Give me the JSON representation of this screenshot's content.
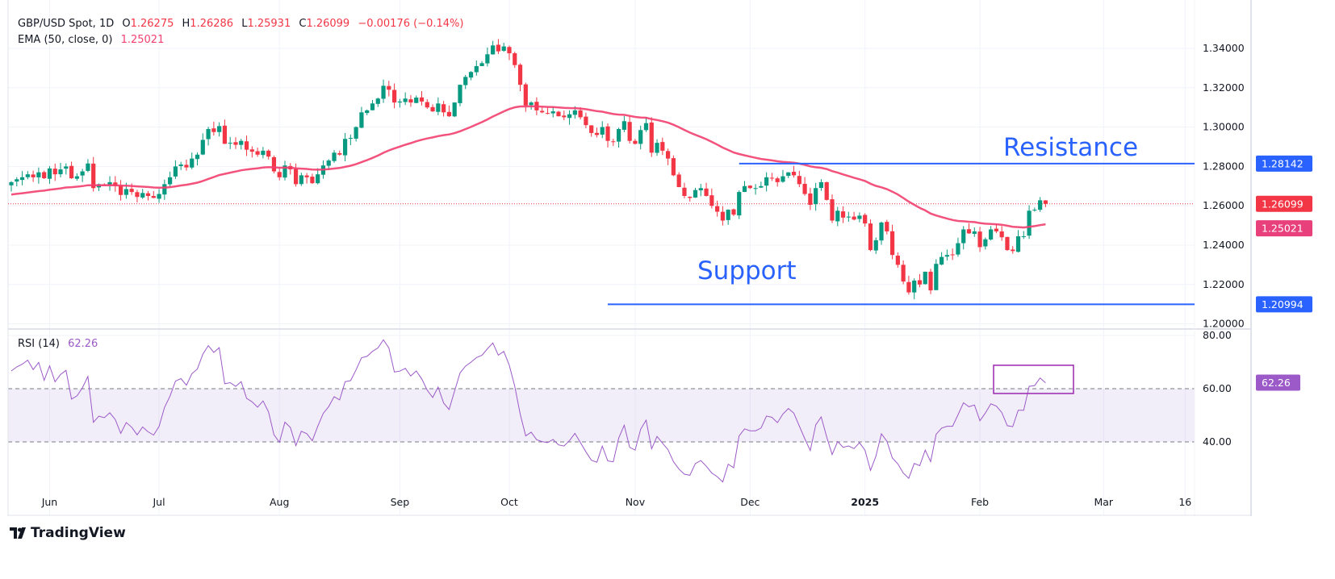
{
  "header": {
    "symbol": "GBP/USD Spot, 1D",
    "open_label": "O",
    "open": "1.26275",
    "high_label": "H",
    "high": "1.26286",
    "low_label": "L",
    "low": "1.25931",
    "close_label": "C",
    "close": "1.26099",
    "change": "−0.00176 (−0.14%)",
    "ema_label": "EMA (50, close, 0)",
    "ema_value": "1.25021",
    "rsi_label": "RSI (14)",
    "rsi_value": "62.26"
  },
  "branding": {
    "logo_text": "TradingView"
  },
  "colors": {
    "up": "#089981",
    "down": "#f23645",
    "ema": "#f23f6f",
    "rsi": "#9c5ac8",
    "levels": "#2962ff"
  },
  "chart_data": {
    "type": "candlestick",
    "title": "GBP/USD Spot, 1D",
    "ylim": [
      1.195,
      1.35
    ],
    "price_ticks": [
      "1.34000",
      "1.32000",
      "1.30000",
      "1.28000",
      "1.26000",
      "1.24000",
      "1.22000",
      "1.20000"
    ],
    "rsi_ticks": [
      "80.00",
      "60.00",
      "40.00"
    ],
    "rsi_band": [
      40,
      60
    ],
    "x_ticks": [
      {
        "label": "Jun",
        "bar": 7
      },
      {
        "label": "Jul",
        "bar": 27
      },
      {
        "label": "Aug",
        "bar": 49
      },
      {
        "label": "Sep",
        "bar": 71
      },
      {
        "label": "Oct",
        "bar": 91
      },
      {
        "label": "Nov",
        "bar": 114
      },
      {
        "label": "Dec",
        "bar": 135
      },
      {
        "label": "2025",
        "bar": 156,
        "bold": true
      },
      {
        "label": "Feb",
        "bar": 177
      },
      {
        "label": "Mar",
        "bar": 199.6
      },
      {
        "label": "16",
        "bar": 214.5
      }
    ],
    "closes": [
      1.272,
      1.2735,
      1.2745,
      1.276,
      1.2745,
      1.277,
      1.274,
      1.279,
      1.276,
      1.2785,
      1.28,
      1.274,
      1.275,
      1.2775,
      1.2815,
      1.269,
      1.271,
      1.2705,
      1.272,
      1.27,
      1.2655,
      1.2685,
      1.267,
      1.2645,
      1.2665,
      1.265,
      1.264,
      1.266,
      1.271,
      1.2745,
      1.28,
      1.281,
      1.2795,
      1.284,
      1.286,
      1.2935,
      1.299,
      1.2975,
      1.3005,
      1.2915,
      1.292,
      1.291,
      1.293,
      1.2885,
      1.2875,
      1.286,
      1.288,
      1.285,
      1.2775,
      1.2745,
      1.2805,
      1.2785,
      1.271,
      1.2755,
      1.2745,
      1.2715,
      1.276,
      1.2805,
      1.283,
      1.287,
      1.286,
      1.294,
      1.2945,
      1.3,
      1.3075,
      1.3085,
      1.312,
      1.3145,
      1.321,
      1.319,
      1.3125,
      1.313,
      1.3145,
      1.3125,
      1.315,
      1.313,
      1.31,
      1.308,
      1.312,
      1.3075,
      1.3055,
      1.3125,
      1.3215,
      1.3255,
      1.328,
      1.331,
      1.3325,
      1.337,
      1.3415,
      1.3385,
      1.341,
      1.3375,
      1.3315,
      1.3215,
      1.311,
      1.3125,
      1.3085,
      1.3075,
      1.307,
      1.308,
      1.3055,
      1.305,
      1.3065,
      1.3085,
      1.305,
      1.301,
      1.297,
      1.296,
      1.3,
      1.293,
      1.2925,
      1.299,
      1.303,
      1.293,
      1.2915,
      1.2985,
      1.302,
      1.287,
      1.292,
      1.288,
      1.284,
      1.2755,
      1.2695,
      1.265,
      1.264,
      1.268,
      1.269,
      1.265,
      1.26,
      1.257,
      1.2525,
      1.258,
      1.2555,
      1.267,
      1.27,
      1.269,
      1.269,
      1.27,
      1.2745,
      1.274,
      1.272,
      1.275,
      1.277,
      1.2755,
      1.271,
      1.266,
      1.2605,
      1.269,
      1.272,
      1.263,
      1.2525,
      1.2575,
      1.254,
      1.2545,
      1.253,
      1.255,
      1.251,
      1.2375,
      1.2425,
      1.2515,
      1.247,
      1.235,
      1.23,
      1.2215,
      1.216,
      1.222,
      1.22,
      1.2265,
      1.217,
      1.2305,
      1.234,
      1.235,
      1.235,
      1.241,
      1.248,
      1.246,
      1.247,
      1.239,
      1.243,
      1.248,
      1.247,
      1.244,
      1.2375,
      1.237,
      1.2445,
      1.2445,
      1.2575,
      1.258,
      1.2628,
      1.26099
    ],
    "last_close": {
      "value": 1.26099,
      "label": "1.26099"
    },
    "ema": {
      "period": 50,
      "last": 1.25021,
      "label": "1.25021"
    },
    "rsi": {
      "period": 14,
      "last": 62.26,
      "label": "62.26"
    },
    "annotations": {
      "resistance": {
        "text": "Resistance",
        "value": 1.28142,
        "label": "1.28142",
        "from_bar": 133
      },
      "support": {
        "text": "Support",
        "value": 1.20994,
        "label": "1.20994",
        "from_bar": 109
      },
      "rsi_box": {
        "from_bar": 179.5,
        "to_bar": 194.1,
        "rsi_top": 68.8,
        "rsi_bottom": 58.2
      }
    }
  }
}
